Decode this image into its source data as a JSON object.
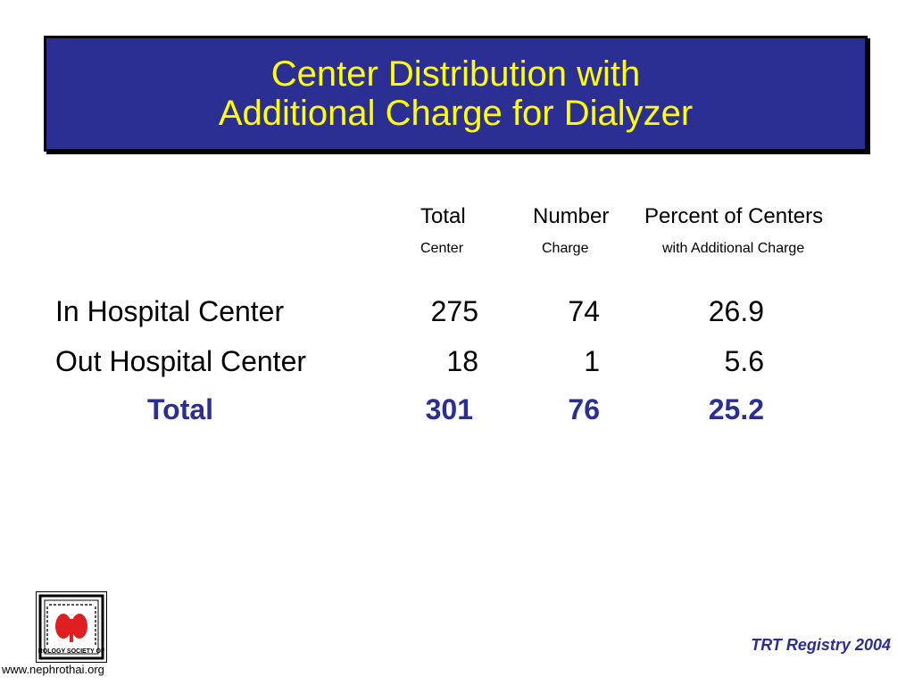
{
  "title": {
    "line1": "Center Distribution with",
    "line2": "Additional Charge for Dialyzer"
  },
  "columns": [
    {
      "head": "Total",
      "sub": "Center"
    },
    {
      "head": "Number",
      "sub": "Charge"
    },
    {
      "head": "Percent of Centers",
      "sub": "with Additional Charge"
    }
  ],
  "rows": [
    {
      "label": "In Hospital Center",
      "total": "275",
      "number": "74",
      "percent": "26.9"
    },
    {
      "label": "Out Hospital Center",
      "total": "18",
      "number": "1",
      "percent": "5.6"
    }
  ],
  "total_row": {
    "label": "Total",
    "total": "301",
    "number": "76",
    "percent": "25.2"
  },
  "logo": {
    "text": "ROLOGY SOCIETY OF"
  },
  "footer": {
    "url": "www.nephrothai.org",
    "registry": "TRT Registry 2004"
  },
  "colors": {
    "title_bg": "#2b2f93",
    "title_text": "#ffff00",
    "total_text": "#2b2f93",
    "logo_red": "#e02020"
  }
}
